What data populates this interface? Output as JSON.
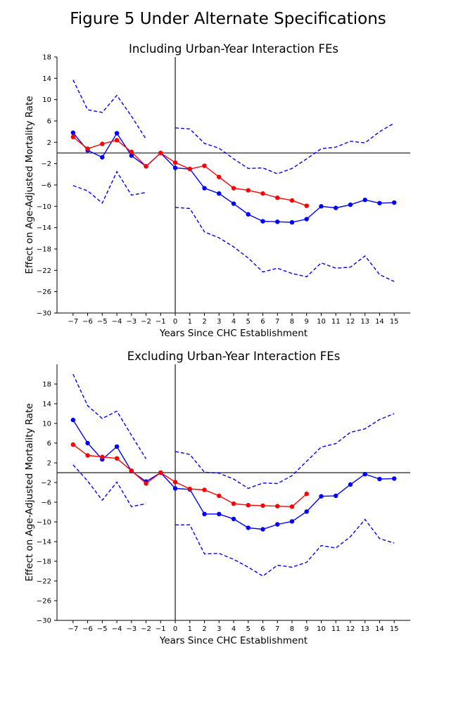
{
  "figure": {
    "title": "Figure 5 Under Alternate Specifications"
  },
  "chart_data": [
    {
      "type": "line",
      "title": "Including Urban-Year Interaction FEs",
      "xlabel": "Years Since CHC Establishment",
      "ylabel": "Effect on Age-Adjusted Mortality Rate",
      "xlim": [
        -8.1,
        16.1
      ],
      "ylim": [
        -30,
        18
      ],
      "xticks": [
        -7,
        -6,
        -5,
        -4,
        -3,
        -2,
        -1,
        0,
        1,
        2,
        3,
        4,
        5,
        6,
        7,
        8,
        9,
        10,
        11,
        12,
        13,
        14,
        15
      ],
      "yticks": [
        -30,
        -26,
        -22,
        -18,
        -14,
        -10,
        -6,
        -2,
        2,
        6,
        10,
        14,
        18
      ],
      "reference_lines": {
        "h": 0,
        "v": 0
      },
      "series": [
        {
          "role": "estimate",
          "style": "solid-marker",
          "color": "#0000ff",
          "x": [
            -7,
            -6,
            -5,
            -4,
            -3,
            -2,
            -1,
            0,
            1,
            2,
            3,
            4,
            5,
            6,
            7,
            8,
            9,
            10,
            11,
            12,
            13,
            14,
            15
          ],
          "y": [
            3.8,
            0.5,
            -0.8,
            3.7,
            -0.5,
            -2.5,
            0,
            -2.8,
            -3.0,
            -6.6,
            -7.6,
            -9.5,
            -11.5,
            -12.8,
            -12.9,
            -13.0,
            -12.4,
            -10.0,
            -10.3,
            -9.7,
            -8.8,
            -9.4,
            -9.3
          ]
        },
        {
          "role": "estimate-alt",
          "style": "solid-marker",
          "color": "#ff0000",
          "x": [
            -7,
            -6,
            -5,
            -4,
            -3,
            -2,
            -1,
            0,
            1,
            2,
            3,
            4,
            5,
            6,
            7,
            8,
            9
          ],
          "y": [
            3.0,
            0.8,
            1.7,
            2.4,
            0.2,
            -2.5,
            0,
            -1.8,
            -3.0,
            -2.4,
            -4.5,
            -6.6,
            -7.0,
            -7.6,
            -8.4,
            -8.9,
            -9.9
          ]
        },
        {
          "role": "upper-ci-pre",
          "style": "dashed",
          "color": "#0000ff",
          "x": [
            -7,
            -6,
            -5,
            -4,
            -3,
            -2
          ],
          "y": [
            13.7,
            8.1,
            7.6,
            10.8,
            6.9,
            2.6
          ]
        },
        {
          "role": "lower-ci-pre",
          "style": "dashed",
          "color": "#0000ff",
          "x": [
            -7,
            -6,
            -5,
            -4,
            -3,
            -2
          ],
          "y": [
            -6.1,
            -7.1,
            -9.4,
            -3.5,
            -7.9,
            -7.4
          ]
        },
        {
          "role": "upper-ci-post",
          "style": "dashed",
          "color": "#0000ff",
          "x": [
            0,
            1,
            2,
            3,
            4,
            5,
            6,
            7,
            8,
            9,
            10,
            11,
            12,
            13,
            14,
            15
          ],
          "y": [
            4.7,
            4.5,
            1.8,
            0.9,
            -1.1,
            -2.9,
            -2.8,
            -3.9,
            -2.9,
            -1.1,
            0.8,
            1.1,
            2.2,
            1.9,
            4.0,
            5.6
          ]
        },
        {
          "role": "lower-ci-post",
          "style": "dashed",
          "color": "#0000ff",
          "x": [
            0,
            1,
            2,
            3,
            4,
            5,
            6,
            7,
            8,
            9,
            10,
            11,
            12,
            13,
            14,
            15
          ],
          "y": [
            -10.2,
            -10.4,
            -14.8,
            -15.9,
            -17.6,
            -19.7,
            -22.3,
            -21.6,
            -22.6,
            -23.2,
            -20.6,
            -21.6,
            -21.4,
            -19.3,
            -22.8,
            -24.1
          ]
        }
      ]
    },
    {
      "type": "line",
      "title": "Excluding Urban-Year Interaction FEs",
      "xlabel": "Years Since CHC Establishment",
      "ylabel": "Effect on Age-Adjusted Mortality Rate",
      "xlim": [
        -8.1,
        16.1
      ],
      "ylim": [
        -30,
        22
      ],
      "xticks": [
        -7,
        -6,
        -5,
        -4,
        -3,
        -2,
        -1,
        0,
        1,
        2,
        3,
        4,
        5,
        6,
        7,
        8,
        9,
        10,
        11,
        12,
        13,
        14,
        15
      ],
      "yticks": [
        -30,
        -26,
        -22,
        -18,
        -14,
        -10,
        -6,
        -2,
        2,
        6,
        10,
        14,
        18
      ],
      "reference_lines": {
        "h": 0,
        "v": 0
      },
      "series": [
        {
          "role": "estimate",
          "style": "solid-marker",
          "color": "#0000ff",
          "x": [
            -7,
            -6,
            -5,
            -4,
            -3,
            -2,
            -1,
            0,
            1,
            2,
            3,
            4,
            5,
            6,
            7,
            8,
            9,
            10,
            11,
            12,
            13,
            14,
            15
          ],
          "y": [
            10.7,
            6.0,
            2.7,
            5.3,
            0.3,
            -1.8,
            0,
            -3.2,
            -3.4,
            -8.4,
            -8.4,
            -9.4,
            -11.2,
            -11.5,
            -10.5,
            -9.9,
            -7.9,
            -4.8,
            -4.7,
            -2.4,
            -0.3,
            -1.3,
            -1.2
          ]
        },
        {
          "role": "estimate-alt",
          "style": "solid-marker",
          "color": "#ff0000",
          "x": [
            -7,
            -6,
            -5,
            -4,
            -3,
            -2,
            -1,
            0,
            1,
            2,
            3,
            4,
            5,
            6,
            7,
            8,
            9
          ],
          "y": [
            5.7,
            3.5,
            3.2,
            2.9,
            0.4,
            -2.2,
            0,
            -1.9,
            -3.3,
            -3.5,
            -4.7,
            -6.3,
            -6.6,
            -6.7,
            -6.8,
            -6.9,
            -4.3
          ]
        },
        {
          "role": "upper-ci-pre",
          "style": "dashed",
          "color": "#0000ff",
          "x": [
            -7,
            -6,
            -5,
            -4,
            -3,
            -2
          ],
          "y": [
            20.0,
            13.6,
            11.0,
            12.5,
            7.6,
            2.8
          ]
        },
        {
          "role": "lower-ci-pre",
          "style": "dashed",
          "color": "#0000ff",
          "x": [
            -7,
            -6,
            -5,
            -4,
            -3,
            -2
          ],
          "y": [
            1.6,
            -1.7,
            -5.6,
            -1.9,
            -6.9,
            -6.3
          ]
        },
        {
          "role": "upper-ci-post",
          "style": "dashed",
          "color": "#0000ff",
          "x": [
            0,
            1,
            2,
            3,
            4,
            5,
            6,
            7,
            8,
            9,
            10,
            11,
            12,
            13,
            14,
            15
          ],
          "y": [
            4.3,
            3.7,
            0.1,
            -0.1,
            -1.3,
            -3.2,
            -2.1,
            -2.2,
            -0.6,
            2.3,
            5.2,
            5.9,
            8.2,
            8.9,
            10.8,
            12.0
          ]
        },
        {
          "role": "lower-ci-post",
          "style": "dashed",
          "color": "#0000ff",
          "x": [
            0,
            1,
            2,
            3,
            4,
            5,
            6,
            7,
            8,
            9,
            10,
            11,
            12,
            13,
            14,
            15
          ],
          "y": [
            -10.6,
            -10.6,
            -16.5,
            -16.4,
            -17.6,
            -19.2,
            -21.0,
            -18.8,
            -19.2,
            -18.2,
            -14.8,
            -15.3,
            -13.0,
            -9.5,
            -13.4,
            -14.3
          ]
        }
      ]
    }
  ]
}
